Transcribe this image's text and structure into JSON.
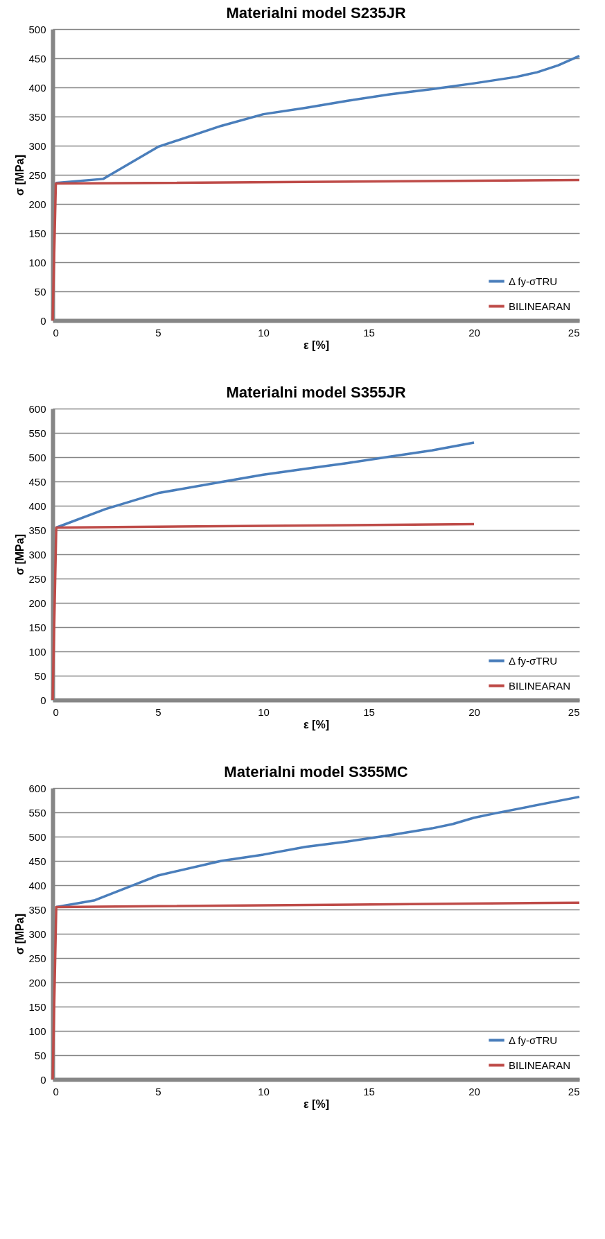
{
  "chart_data": [
    {
      "type": "line",
      "title": "Materialni model S235JR",
      "xlabel": "ε [%]",
      "ylabel": "σ  [MPa]",
      "xlim": [
        0,
        25
      ],
      "xticks": [
        0,
        5,
        10,
        15,
        20,
        25
      ],
      "ylim": [
        0,
        500
      ],
      "yticks": [
        0,
        50,
        100,
        150,
        200,
        250,
        300,
        350,
        400,
        450,
        500
      ],
      "grid": "y",
      "legend": "bottom right",
      "marker": "none",
      "line_style": "solid",
      "series": [
        {
          "name": "Δ fy-σTRU",
          "color": "#4a7ebb",
          "x": [
            0.15,
            2.4,
            5,
            8,
            10,
            12,
            14,
            16,
            18,
            20,
            22,
            23,
            24,
            25
          ],
          "values": [
            236,
            243,
            298,
            334,
            354,
            365,
            377,
            388,
            397,
            407,
            418,
            426,
            438,
            454
          ]
        },
        {
          "name": "BILINEARAN",
          "color": "#be4b48",
          "x": [
            0,
            0.15,
            25
          ],
          "values": [
            0,
            235,
            241
          ]
        }
      ]
    },
    {
      "type": "line",
      "title": "Materialni model S355JR",
      "xlabel": "ε [%]",
      "ylabel": "σ  [MPa]",
      "xlim": [
        0,
        25
      ],
      "xticks": [
        0,
        5,
        10,
        15,
        20,
        25
      ],
      "ylim": [
        0,
        600
      ],
      "yticks": [
        0,
        50,
        100,
        150,
        200,
        250,
        300,
        350,
        400,
        450,
        500,
        550,
        600
      ],
      "grid": "y",
      "legend": "bottom right",
      "marker": "none",
      "line_style": "solid",
      "series": [
        {
          "name": "Δ fy-σTRU",
          "color": "#4a7ebb",
          "x": [
            0.17,
            2.5,
            5,
            8,
            10,
            12,
            14,
            16,
            18,
            20
          ],
          "values": [
            355,
            393,
            426,
            449,
            464,
            476,
            488,
            501,
            514,
            530
          ]
        },
        {
          "name": "BILINEARAN",
          "color": "#be4b48",
          "x": [
            0,
            0.17,
            20
          ],
          "values": [
            0,
            355,
            362
          ]
        }
      ]
    },
    {
      "type": "line",
      "title": "Materialni model S355MC",
      "xlabel": "ε [%]",
      "ylabel": "σ  [MPa]",
      "xlim": [
        0,
        25
      ],
      "xticks": [
        0,
        5,
        10,
        15,
        20,
        25
      ],
      "ylim": [
        0,
        600
      ],
      "yticks": [
        0,
        50,
        100,
        150,
        200,
        250,
        300,
        350,
        400,
        450,
        500,
        550,
        600
      ],
      "grid": "y",
      "legend": "bottom right",
      "marker": "none",
      "line_style": "solid",
      "series": [
        {
          "name": "Δ fy-σTRU",
          "color": "#4a7ebb",
          "x": [
            0.17,
            2,
            5,
            8,
            10,
            12,
            14,
            16,
            18,
            19,
            20,
            21,
            25
          ],
          "values": [
            355,
            369,
            420,
            450,
            463,
            479,
            490,
            503,
            517,
            526,
            539,
            548,
            582
          ]
        },
        {
          "name": "BILINEARAN",
          "color": "#be4b48",
          "x": [
            0,
            0.17,
            25
          ],
          "values": [
            0,
            355,
            364
          ]
        }
      ]
    }
  ]
}
